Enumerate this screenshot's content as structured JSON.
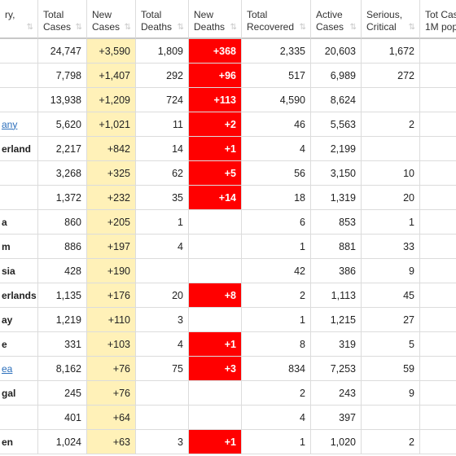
{
  "table": {
    "headers": [
      [
        "ry,"
      ],
      [
        "Total",
        "Cases"
      ],
      [
        "New",
        "Cases"
      ],
      [
        "Total",
        "Deaths"
      ],
      [
        "New",
        "Deaths"
      ],
      [
        "Total",
        "Recovered"
      ],
      [
        "Active",
        "Cases"
      ],
      [
        "Serious,",
        "Critical"
      ],
      [
        "Tot Cas",
        "1M pop"
      ]
    ],
    "rows": [
      {
        "country": null,
        "cells": [
          "24,747",
          "+3,590",
          "1,809",
          "+368",
          "2,335",
          "20,603",
          "1,672",
          null
        ]
      },
      {
        "country": null,
        "cells": [
          "7,798",
          "+1,407",
          "292",
          "+96",
          "517",
          "6,989",
          "272",
          null
        ]
      },
      {
        "country": null,
        "cells": [
          "13,938",
          "+1,209",
          "724",
          "+113",
          "4,590",
          "8,624",
          null,
          null
        ]
      },
      {
        "country": "any",
        "link": true,
        "cells": [
          "5,620",
          "+1,021",
          "11",
          "+2",
          "46",
          "5,563",
          "2",
          null
        ]
      },
      {
        "country": "erland",
        "cells": [
          "2,217",
          "+842",
          "14",
          "+1",
          "4",
          "2,199",
          null,
          null
        ]
      },
      {
        "country": null,
        "cells": [
          "3,268",
          "+325",
          "62",
          "+5",
          "56",
          "3,150",
          "10",
          null
        ]
      },
      {
        "country": null,
        "cells": [
          "1,372",
          "+232",
          "35",
          "+14",
          "18",
          "1,319",
          "20",
          null
        ]
      },
      {
        "country": "a",
        "cells": [
          "860",
          "+205",
          "1",
          null,
          "6",
          "853",
          "1",
          null
        ]
      },
      {
        "country": "m",
        "cells": [
          "886",
          "+197",
          "4",
          null,
          "1",
          "881",
          "33",
          null
        ]
      },
      {
        "country": "sia",
        "cells": [
          "428",
          "+190",
          null,
          null,
          "42",
          "386",
          "9",
          null
        ]
      },
      {
        "country": "erlands",
        "cells": [
          "1,135",
          "+176",
          "20",
          "+8",
          "2",
          "1,113",
          "45",
          null
        ]
      },
      {
        "country": "ay",
        "cells": [
          "1,219",
          "+110",
          "3",
          null,
          "1",
          "1,215",
          "27",
          null
        ]
      },
      {
        "country": "e",
        "cells": [
          "331",
          "+103",
          "4",
          "+1",
          "8",
          "319",
          "5",
          null
        ]
      },
      {
        "country": "ea",
        "link": true,
        "cells": [
          "8,162",
          "+76",
          "75",
          "+3",
          "834",
          "7,253",
          "59",
          null
        ]
      },
      {
        "country": "gal",
        "cells": [
          "245",
          "+76",
          null,
          null,
          "2",
          "243",
          "9",
          null
        ]
      },
      {
        "country": null,
        "cells": [
          "401",
          "+64",
          null,
          null,
          "4",
          "397",
          null,
          null
        ]
      },
      {
        "country": "en",
        "cells": [
          "1,024",
          "+63",
          "3",
          "+1",
          "1",
          "1,020",
          "2",
          null
        ]
      }
    ]
  }
}
